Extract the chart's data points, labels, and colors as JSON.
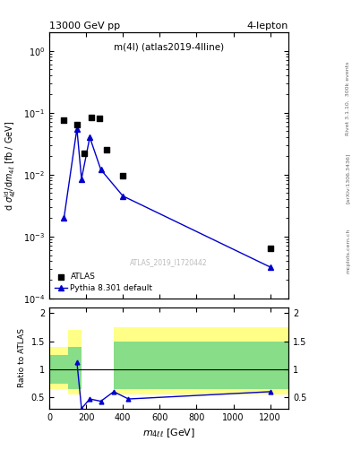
{
  "title_top": "13000 GeV pp",
  "title_top_right": "4-lepton",
  "annotation": "m(4l) (atlas2019-4lline)",
  "watermark": "ATLAS_2019_I1720442",
  "rivet_label": "Rivet 3.1.10,  300k events",
  "arxiv_label": "[arXiv:1306.3436]",
  "mcplots_label": "mcplots.cern.ch",
  "data_x": [
    80,
    150,
    190,
    230,
    270,
    310,
    400,
    1200
  ],
  "data_y": [
    0.075,
    0.065,
    0.022,
    0.085,
    0.08,
    0.025,
    0.0095,
    0.00065
  ],
  "mc_x": [
    80,
    150,
    175,
    220,
    280,
    400,
    1200
  ],
  "mc_y": [
    0.002,
    0.055,
    0.0085,
    0.04,
    0.012,
    0.0045,
    0.00032
  ],
  "ratio_mc_x": [
    150,
    175,
    220,
    280,
    350,
    430,
    1200
  ],
  "ratio_mc_y": [
    1.13,
    0.3,
    0.47,
    0.43,
    0.6,
    0.47,
    0.6
  ],
  "main_color": "#0000cc",
  "data_color": "#000000",
  "ylabel_main": "d $\\sigma^{\\rm id}_{\\rm 4\\ell}$/d$m_{\\rm 4\\ell}$ [fb / GeV]",
  "ylabel_ratio": "Ratio to ATLAS",
  "xlabel": "$m_{4\\ell\\ell}$ [GeV]",
  "xlim": [
    0,
    1300
  ],
  "ylim_main": [
    0.0001,
    2.0
  ],
  "yticks_ratio": [
    0.5,
    1.0,
    1.5,
    2.0
  ]
}
